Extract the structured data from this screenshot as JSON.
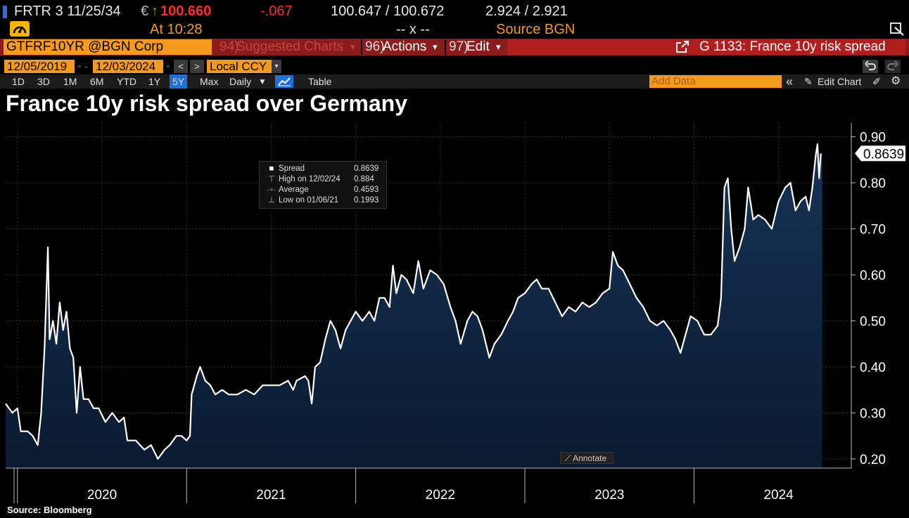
{
  "header": {
    "ticker": "FRTR 3 11/25/34",
    "currency_symbol": "€",
    "up_arrow": "↑",
    "last_price": "100.660",
    "change": "-.067",
    "bid_ask": "100.647 / 100.672",
    "yields": "2.924 / 2.921",
    "time_label": "At 10:28",
    "mid_placeholder": "-- x --",
    "source": "Source BGN"
  },
  "command_bar": {
    "security": "GTFRF10YR @BGN Corp",
    "suggested_num": "94)",
    "suggested": "Suggested Charts",
    "actions_num": "96)",
    "actions": "Actions",
    "edit_num": "97)",
    "edit": "Edit",
    "caret": "▾",
    "chart_id": "G 1133: France 10y risk spread"
  },
  "date_range": {
    "start": "12/05/2019",
    "end": "12/03/2024",
    "prev": "<",
    "next": ">",
    "currency": "Local CCY"
  },
  "toolbar": {
    "periods": [
      "1D",
      "3D",
      "1M",
      "6M",
      "YTD",
      "1Y",
      "5Y",
      "Max"
    ],
    "active_period": "5Y",
    "frequency": "Daily",
    "table": "Table",
    "add_data_placeholder": "Add Data",
    "edit_chart": "Edit Chart",
    "collapse": "«"
  },
  "colors": {
    "line": "#ffffff",
    "area_top": "#163356",
    "area_bottom": "#0a1a30",
    "orange": "#f49a1c",
    "red_bar": "#8b1c1c",
    "price_green": "#ff2b2b"
  },
  "legend": {
    "rows": [
      {
        "icon": "■",
        "label": "Spread",
        "value": "0.8639"
      },
      {
        "icon": "⊤",
        "label": "High on 12/02/24",
        "value": "0.884"
      },
      {
        "icon": "-+-",
        "label": "Average",
        "value": "0.4593"
      },
      {
        "icon": "⊥",
        "label": "Low on 01/06/21",
        "value": "0.1993"
      }
    ]
  },
  "annotate_label": "Annotate",
  "source_note": "Source: Bloomberg",
  "chart_data": {
    "type": "area",
    "title": "France 10y risk spread over Germany",
    "series_name": "Spread",
    "last_value_label": "0.8639",
    "last_value": 0.8639,
    "xlabel": "",
    "ylabel": "",
    "x_range": [
      2019.93,
      2024.93
    ],
    "ylim": [
      0.18,
      0.93
    ],
    "y_ticks": [
      0.2,
      0.3,
      0.4,
      0.5,
      0.6,
      0.7,
      0.8,
      0.9
    ],
    "y_tick_labels": [
      "0.20",
      "0.30",
      "0.40",
      "0.50",
      "0.60",
      "0.70",
      "0.80",
      "0.90"
    ],
    "x_ticks": [
      2020,
      2021,
      2022,
      2023,
      2024
    ],
    "x_tick_labels": [
      "2020",
      "2021",
      "2022",
      "2023",
      "2024"
    ],
    "points": [
      [
        2019.93,
        0.32
      ],
      [
        2019.97,
        0.3
      ],
      [
        2020.0,
        0.31
      ],
      [
        2020.02,
        0.26
      ],
      [
        2020.06,
        0.26
      ],
      [
        2020.09,
        0.25
      ],
      [
        2020.12,
        0.23
      ],
      [
        2020.14,
        0.3
      ],
      [
        2020.16,
        0.44
      ],
      [
        2020.18,
        0.66
      ],
      [
        2020.19,
        0.46
      ],
      [
        2020.21,
        0.5
      ],
      [
        2020.23,
        0.45
      ],
      [
        2020.25,
        0.54
      ],
      [
        2020.27,
        0.48
      ],
      [
        2020.29,
        0.52
      ],
      [
        2020.31,
        0.44
      ],
      [
        2020.33,
        0.42
      ],
      [
        2020.35,
        0.3
      ],
      [
        2020.37,
        0.4
      ],
      [
        2020.39,
        0.33
      ],
      [
        2020.42,
        0.33
      ],
      [
        2020.45,
        0.31
      ],
      [
        2020.48,
        0.31
      ],
      [
        2020.52,
        0.28
      ],
      [
        2020.56,
        0.3
      ],
      [
        2020.6,
        0.28
      ],
      [
        2020.63,
        0.29
      ],
      [
        2020.65,
        0.24
      ],
      [
        2020.7,
        0.24
      ],
      [
        2020.75,
        0.22
      ],
      [
        2020.79,
        0.23
      ],
      [
        2020.83,
        0.2
      ],
      [
        2020.87,
        0.22
      ],
      [
        2020.9,
        0.23
      ],
      [
        2020.94,
        0.25
      ],
      [
        2020.97,
        0.25
      ],
      [
        2021.0,
        0.24
      ],
      [
        2021.02,
        0.25
      ],
      [
        2021.03,
        0.34
      ],
      [
        2021.06,
        0.38
      ],
      [
        2021.08,
        0.4
      ],
      [
        2021.11,
        0.37
      ],
      [
        2021.14,
        0.36
      ],
      [
        2021.17,
        0.34
      ],
      [
        2021.21,
        0.35
      ],
      [
        2021.25,
        0.34
      ],
      [
        2021.3,
        0.34
      ],
      [
        2021.35,
        0.35
      ],
      [
        2021.4,
        0.34
      ],
      [
        2021.45,
        0.36
      ],
      [
        2021.5,
        0.36
      ],
      [
        2021.55,
        0.36
      ],
      [
        2021.6,
        0.37
      ],
      [
        2021.63,
        0.35
      ],
      [
        2021.65,
        0.37
      ],
      [
        2021.7,
        0.38
      ],
      [
        2021.72,
        0.37
      ],
      [
        2021.74,
        0.32
      ],
      [
        2021.76,
        0.4
      ],
      [
        2021.79,
        0.41
      ],
      [
        2021.82,
        0.46
      ],
      [
        2021.85,
        0.5
      ],
      [
        2021.88,
        0.48
      ],
      [
        2021.91,
        0.44
      ],
      [
        2021.94,
        0.48
      ],
      [
        2021.97,
        0.5
      ],
      [
        2022.0,
        0.52
      ],
      [
        2022.04,
        0.5
      ],
      [
        2022.08,
        0.52
      ],
      [
        2022.11,
        0.5
      ],
      [
        2022.14,
        0.55
      ],
      [
        2022.17,
        0.55
      ],
      [
        2022.2,
        0.53
      ],
      [
        2022.22,
        0.62
      ],
      [
        2022.24,
        0.56
      ],
      [
        2022.27,
        0.6
      ],
      [
        2022.3,
        0.59
      ],
      [
        2022.34,
        0.56
      ],
      [
        2022.37,
        0.63
      ],
      [
        2022.4,
        0.57
      ],
      [
        2022.44,
        0.61
      ],
      [
        2022.48,
        0.6
      ],
      [
        2022.52,
        0.58
      ],
      [
        2022.56,
        0.53
      ],
      [
        2022.59,
        0.5
      ],
      [
        2022.62,
        0.45
      ],
      [
        2022.66,
        0.5
      ],
      [
        2022.69,
        0.52
      ],
      [
        2022.72,
        0.51
      ],
      [
        2022.75,
        0.48
      ],
      [
        2022.79,
        0.42
      ],
      [
        2022.82,
        0.45
      ],
      [
        2022.86,
        0.47
      ],
      [
        2022.9,
        0.5
      ],
      [
        2022.93,
        0.52
      ],
      [
        2022.96,
        0.55
      ],
      [
        2023.0,
        0.56
      ],
      [
        2023.04,
        0.58
      ],
      [
        2023.07,
        0.59
      ],
      [
        2023.1,
        0.57
      ],
      [
        2023.14,
        0.57
      ],
      [
        2023.18,
        0.54
      ],
      [
        2023.22,
        0.51
      ],
      [
        2023.26,
        0.53
      ],
      [
        2023.3,
        0.52
      ],
      [
        2023.34,
        0.54
      ],
      [
        2023.38,
        0.53
      ],
      [
        2023.42,
        0.54
      ],
      [
        2023.46,
        0.56
      ],
      [
        2023.5,
        0.57
      ],
      [
        2023.52,
        0.65
      ],
      [
        2023.55,
        0.62
      ],
      [
        2023.58,
        0.61
      ],
      [
        2023.62,
        0.58
      ],
      [
        2023.66,
        0.55
      ],
      [
        2023.7,
        0.53
      ],
      [
        2023.74,
        0.5
      ],
      [
        2023.78,
        0.49
      ],
      [
        2023.82,
        0.5
      ],
      [
        2023.86,
        0.48
      ],
      [
        2023.89,
        0.46
      ],
      [
        2023.92,
        0.43
      ],
      [
        2023.95,
        0.47
      ],
      [
        2023.98,
        0.51
      ],
      [
        2024.02,
        0.5
      ],
      [
        2024.06,
        0.47
      ],
      [
        2024.1,
        0.47
      ],
      [
        2024.14,
        0.49
      ],
      [
        2024.16,
        0.55
      ],
      [
        2024.18,
        0.79
      ],
      [
        2024.2,
        0.81
      ],
      [
        2024.22,
        0.7
      ],
      [
        2024.24,
        0.63
      ],
      [
        2024.27,
        0.66
      ],
      [
        2024.3,
        0.7
      ],
      [
        2024.32,
        0.79
      ],
      [
        2024.35,
        0.72
      ],
      [
        2024.38,
        0.73
      ],
      [
        2024.42,
        0.72
      ],
      [
        2024.46,
        0.7
      ],
      [
        2024.5,
        0.76
      ],
      [
        2024.54,
        0.79
      ],
      [
        2024.57,
        0.8
      ],
      [
        2024.6,
        0.74
      ],
      [
        2024.63,
        0.76
      ],
      [
        2024.66,
        0.77
      ],
      [
        2024.68,
        0.74
      ],
      [
        2024.7,
        0.79
      ],
      [
        2024.72,
        0.86
      ],
      [
        2024.73,
        0.884
      ],
      [
        2024.74,
        0.81
      ],
      [
        2024.75,
        0.8639
      ]
    ]
  }
}
